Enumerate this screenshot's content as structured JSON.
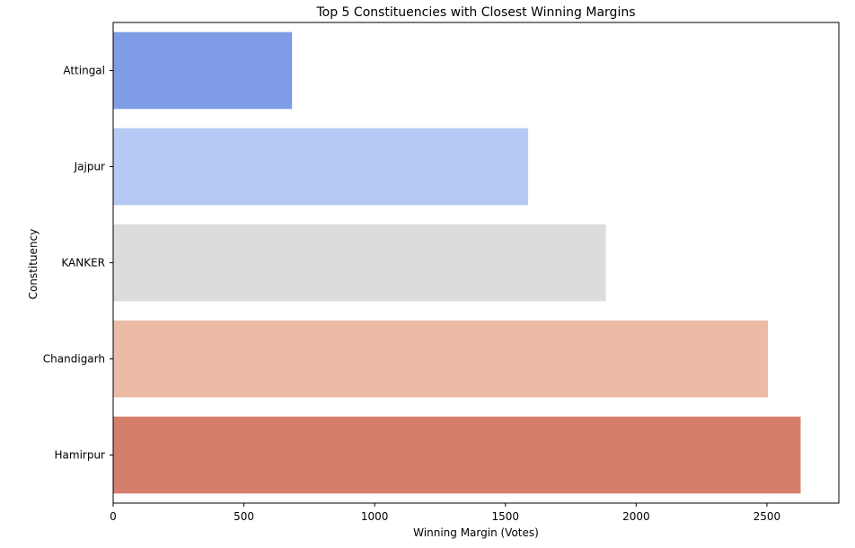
{
  "chart_data": {
    "type": "bar",
    "orientation": "horizontal",
    "title": "Top 5 Constituencies with Closest Winning Margins",
    "xlabel": "Winning Margin (Votes)",
    "ylabel": "Constituency",
    "categories": [
      "Attingal",
      "Jajpur",
      "KANKER",
      "Chandigarh",
      "Hamirpur"
    ],
    "values": [
      684,
      1587,
      1884,
      2504,
      2629
    ],
    "colors": [
      "#7f9de6",
      "#b4c9f3",
      "#dcdcdc",
      "#ebbba6",
      "#d57e6b"
    ],
    "xlim": [
      0,
      2775
    ],
    "xticks": [
      0,
      500,
      1000,
      1500,
      2000,
      2500
    ],
    "grid": false,
    "legend": "none"
  }
}
